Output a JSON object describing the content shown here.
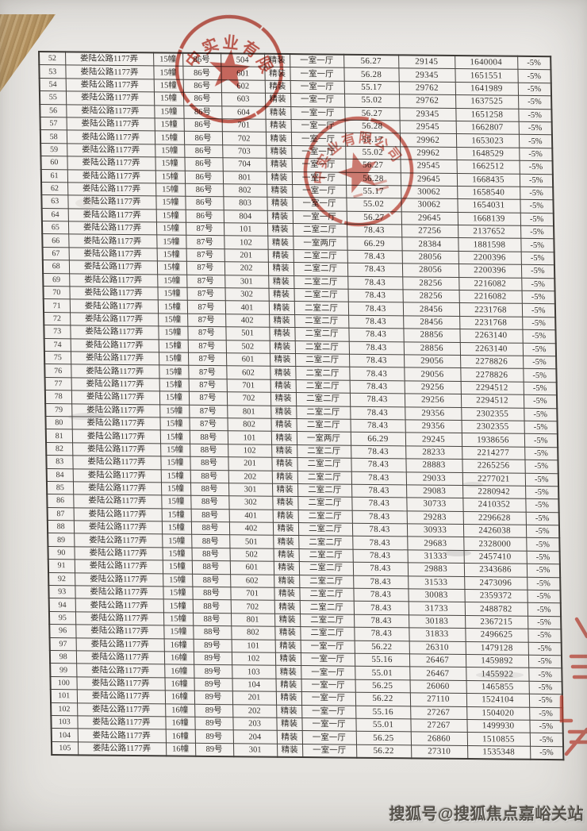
{
  "page": {
    "watermark": "搜狐号@搜狐焦点嘉峪关站"
  },
  "stamps": {
    "top_stamp": {
      "arc_text": "中实业有限",
      "color": "#bd3a2c"
    },
    "middle_stamp": {
      "arc_text": "中实业有限公司",
      "color": "#bd3a2c"
    }
  },
  "table": {
    "columns": [
      "no",
      "address",
      "building",
      "unit",
      "room",
      "decoration",
      "layout",
      "area",
      "unit_price",
      "total_price",
      "discount"
    ],
    "rows": [
      [
        52,
        "娄陆公路1177弄",
        "15幢",
        "86号",
        "504",
        "精装",
        "一室一厅",
        "56.27",
        "29145",
        "1640004",
        "-5%"
      ],
      [
        53,
        "娄陆公路1177弄",
        "15幢",
        "86号",
        "601",
        "精装",
        "一室一厅",
        "56.28",
        "29345",
        "1651551",
        "-5%"
      ],
      [
        54,
        "娄陆公路1177弄",
        "15幢",
        "86号",
        "602",
        "精装",
        "一室一厅",
        "55.17",
        "29762",
        "1641989",
        "-5%"
      ],
      [
        55,
        "娄陆公路1177弄",
        "15幢",
        "86号",
        "603",
        "精装",
        "一室一厅",
        "55.02",
        "29762",
        "1637525",
        "-5%"
      ],
      [
        56,
        "娄陆公路1177弄",
        "15幢",
        "86号",
        "604",
        "精装",
        "一室一厅",
        "56.27",
        "29345",
        "1651258",
        "-5%"
      ],
      [
        57,
        "娄陆公路1177弄",
        "15幢",
        "86号",
        "701",
        "精装",
        "一室一厅",
        "56.28",
        "29545",
        "1662807",
        "-5%"
      ],
      [
        58,
        "娄陆公路1177弄",
        "15幢",
        "86号",
        "702",
        "精装",
        "一室一厅",
        "55.17",
        "29962",
        "1653023",
        "-5%"
      ],
      [
        59,
        "娄陆公路1177弄",
        "15幢",
        "86号",
        "703",
        "精装",
        "一室一厅",
        "55.02",
        "29962",
        "1648529",
        "-5%"
      ],
      [
        60,
        "娄陆公路1177弄",
        "15幢",
        "86号",
        "704",
        "精装",
        "一室一厅",
        "56.27",
        "29545",
        "1662512",
        "-5%"
      ],
      [
        61,
        "娄陆公路1177弄",
        "15幢",
        "86号",
        "801",
        "精装",
        "一室一厅",
        "56.28",
        "29645",
        "1668435",
        "-5%"
      ],
      [
        62,
        "娄陆公路1177弄",
        "15幢",
        "86号",
        "802",
        "精装",
        "一室一厅",
        "55.17",
        "30062",
        "1658540",
        "-5%"
      ],
      [
        63,
        "娄陆公路1177弄",
        "15幢",
        "86号",
        "803",
        "精装",
        "一室一厅",
        "55.02",
        "30062",
        "1654031",
        "-5%"
      ],
      [
        64,
        "娄陆公路1177弄",
        "15幢",
        "86号",
        "804",
        "精装",
        "一室一厅",
        "56.27",
        "29645",
        "1668139",
        "-5%"
      ],
      [
        65,
        "娄陆公路1177弄",
        "15幢",
        "87号",
        "101",
        "精装",
        "二室二厅",
        "78.43",
        "27256",
        "2137652",
        "-5%"
      ],
      [
        66,
        "娄陆公路1177弄",
        "15幢",
        "87号",
        "102",
        "精装",
        "一室两厅",
        "66.29",
        "28384",
        "1881598",
        "-5%"
      ],
      [
        67,
        "娄陆公路1177弄",
        "15幢",
        "87号",
        "201",
        "精装",
        "二室二厅",
        "78.43",
        "28056",
        "2200396",
        "-5%"
      ],
      [
        68,
        "娄陆公路1177弄",
        "15幢",
        "87号",
        "202",
        "精装",
        "二室二厅",
        "78.43",
        "28056",
        "2200396",
        "-5%"
      ],
      [
        69,
        "娄陆公路1177弄",
        "15幢",
        "87号",
        "301",
        "精装",
        "二室二厅",
        "78.43",
        "28256",
        "2216082",
        "-5%"
      ],
      [
        70,
        "娄陆公路1177弄",
        "15幢",
        "87号",
        "302",
        "精装",
        "二室二厅",
        "78.43",
        "28256",
        "2216082",
        "-5%"
      ],
      [
        71,
        "娄陆公路1177弄",
        "15幢",
        "87号",
        "401",
        "精装",
        "二室二厅",
        "78.43",
        "28456",
        "2231768",
        "-5%"
      ],
      [
        72,
        "娄陆公路1177弄",
        "15幢",
        "87号",
        "402",
        "精装",
        "二室二厅",
        "78.43",
        "28456",
        "2231768",
        "-5%"
      ],
      [
        73,
        "娄陆公路1177弄",
        "15幢",
        "87号",
        "501",
        "精装",
        "二室二厅",
        "78.43",
        "28856",
        "2263140",
        "-5%"
      ],
      [
        74,
        "娄陆公路1177弄",
        "15幢",
        "87号",
        "502",
        "精装",
        "二室二厅",
        "78.43",
        "28856",
        "2263140",
        "-5%"
      ],
      [
        75,
        "娄陆公路1177弄",
        "15幢",
        "87号",
        "601",
        "精装",
        "二室二厅",
        "78.43",
        "29056",
        "2278826",
        "-5%"
      ],
      [
        76,
        "娄陆公路1177弄",
        "15幢",
        "87号",
        "602",
        "精装",
        "二室二厅",
        "78.43",
        "29056",
        "2278826",
        "-5%"
      ],
      [
        77,
        "娄陆公路1177弄",
        "15幢",
        "87号",
        "701",
        "精装",
        "二室二厅",
        "78.43",
        "29256",
        "2294512",
        "-5%"
      ],
      [
        78,
        "娄陆公路1177弄",
        "15幢",
        "87号",
        "702",
        "精装",
        "二室二厅",
        "78.43",
        "29256",
        "2294512",
        "-5%"
      ],
      [
        79,
        "娄陆公路1177弄",
        "15幢",
        "87号",
        "801",
        "精装",
        "二室二厅",
        "78.43",
        "29356",
        "2302355",
        "-5%"
      ],
      [
        80,
        "娄陆公路1177弄",
        "15幢",
        "87号",
        "802",
        "精装",
        "二室二厅",
        "78.43",
        "29356",
        "2302355",
        "-5%"
      ],
      [
        81,
        "娄陆公路1177弄",
        "15幢",
        "88号",
        "101",
        "精装",
        "一室两厅",
        "66.29",
        "29245",
        "1938656",
        "-5%"
      ],
      [
        82,
        "娄陆公路1177弄",
        "15幢",
        "88号",
        "102",
        "精装",
        "二室二厅",
        "78.43",
        "28233",
        "2214277",
        "-5%"
      ],
      [
        83,
        "娄陆公路1177弄",
        "15幢",
        "88号",
        "201",
        "精装",
        "二室二厅",
        "78.43",
        "28883",
        "2265256",
        "-5%"
      ],
      [
        84,
        "娄陆公路1177弄",
        "15幢",
        "88号",
        "202",
        "精装",
        "二室二厅",
        "78.43",
        "29033",
        "2277021",
        "-5%"
      ],
      [
        85,
        "娄陆公路1177弄",
        "15幢",
        "88号",
        "301",
        "精装",
        "二室二厅",
        "78.43",
        "29083",
        "2280942",
        "-5%"
      ],
      [
        86,
        "娄陆公路1177弄",
        "15幢",
        "88号",
        "302",
        "精装",
        "二室二厅",
        "78.43",
        "30733",
        "2410352",
        "-5%"
      ],
      [
        87,
        "娄陆公路1177弄",
        "15幢",
        "88号",
        "401",
        "精装",
        "二室二厅",
        "78.43",
        "29283",
        "2296628",
        "-5%"
      ],
      [
        88,
        "娄陆公路1177弄",
        "15幢",
        "88号",
        "402",
        "精装",
        "二室二厅",
        "78.43",
        "30933",
        "2426038",
        "-5%"
      ],
      [
        89,
        "娄陆公路1177弄",
        "15幢",
        "88号",
        "501",
        "精装",
        "二室二厅",
        "78.43",
        "29683",
        "2328000",
        "-5%"
      ],
      [
        90,
        "娄陆公路1177弄",
        "15幢",
        "88号",
        "502",
        "精装",
        "二室二厅",
        "78.43",
        "31333",
        "2457410",
        "-5%"
      ],
      [
        91,
        "娄陆公路1177弄",
        "15幢",
        "88号",
        "601",
        "精装",
        "二室二厅",
        "78.43",
        "29883",
        "2343686",
        "-5%"
      ],
      [
        92,
        "娄陆公路1177弄",
        "15幢",
        "88号",
        "602",
        "精装",
        "二室二厅",
        "78.43",
        "31533",
        "2473096",
        "-5%"
      ],
      [
        93,
        "娄陆公路1177弄",
        "15幢",
        "88号",
        "701",
        "精装",
        "二室二厅",
        "78.43",
        "30083",
        "2359372",
        "-5%"
      ],
      [
        94,
        "娄陆公路1177弄",
        "15幢",
        "88号",
        "702",
        "精装",
        "二室二厅",
        "78.43",
        "31733",
        "2488782",
        "-5%"
      ],
      [
        95,
        "娄陆公路1177弄",
        "15幢",
        "88号",
        "801",
        "精装",
        "二室二厅",
        "78.43",
        "30183",
        "2367215",
        "-5%"
      ],
      [
        96,
        "娄陆公路1177弄",
        "15幢",
        "88号",
        "802",
        "精装",
        "二室二厅",
        "78.43",
        "31833",
        "2496625",
        "-5%"
      ],
      [
        97,
        "娄陆公路1177弄",
        "16幢",
        "89号",
        "101",
        "精装",
        "一室一厅",
        "56.22",
        "26310",
        "1479128",
        "-5%"
      ],
      [
        98,
        "娄陆公路1177弄",
        "16幢",
        "89号",
        "102",
        "精装",
        "一室一厅",
        "55.16",
        "26467",
        "1459892",
        "-5%"
      ],
      [
        99,
        "娄陆公路1177弄",
        "16幢",
        "89号",
        "103",
        "精装",
        "一室一厅",
        "55.01",
        "26467",
        "1455922",
        "-5%"
      ],
      [
        100,
        "娄陆公路1177弄",
        "16幢",
        "89号",
        "104",
        "精装",
        "一室一厅",
        "56.25",
        "26060",
        "1465855",
        "-5%"
      ],
      [
        101,
        "娄陆公路1177弄",
        "16幢",
        "89号",
        "201",
        "精装",
        "一室一厅",
        "56.22",
        "27110",
        "1524104",
        "-5%"
      ],
      [
        102,
        "娄陆公路1177弄",
        "16幢",
        "89号",
        "202",
        "精装",
        "一室一厅",
        "55.16",
        "27267",
        "1504020",
        "-5%"
      ],
      [
        103,
        "娄陆公路1177弄",
        "16幢",
        "89号",
        "203",
        "精装",
        "一室一厅",
        "55.01",
        "27267",
        "1499930",
        "-5%"
      ],
      [
        104,
        "娄陆公路1177弄",
        "16幢",
        "89号",
        "204",
        "精装",
        "一室一厅",
        "56.25",
        "26860",
        "1510855",
        "-5%"
      ],
      [
        105,
        "娄陆公路1177弄",
        "16幢",
        "89号",
        "301",
        "精装",
        "一室一厅",
        "56.22",
        "27310",
        "1535348",
        "-5%"
      ]
    ]
  }
}
